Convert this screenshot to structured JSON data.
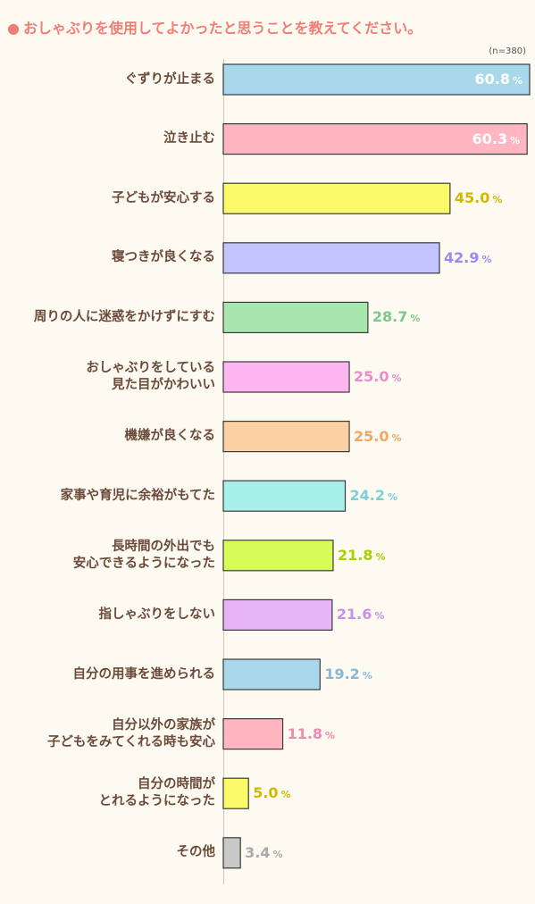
{
  "title": "おしゃぶりを使用してよかったと思うことを教えてください。",
  "title_bullet": "●",
  "n_label": "(n=380)",
  "chart_data": {
    "type": "bar",
    "orientation": "horizontal",
    "title": "おしゃぶりを使用してよかったと思うことを教えてください。",
    "annotation": "(n=380)",
    "unit": "%",
    "xlim": [
      0,
      60.8
    ],
    "grid": false,
    "categories": [
      "ぐずりが止まる",
      "泣き止む",
      "子どもが安心する",
      "寝つきが良くなる",
      "周りの人に迷惑をかけずにすむ",
      "おしゃぶりをしている\n見た目がかわいい",
      "機嫌が良くなる",
      "家事や育児に余裕がもてた",
      "長時間の外出でも\n安心できるようになった",
      "指しゃぶりをしない",
      "自分の用事を進められる",
      "自分以外の家族が\n子どもをみてくれる時も安心",
      "自分の時間が\nとれるようになった",
      "その他"
    ],
    "values": [
      60.8,
      60.3,
      45.0,
      42.9,
      28.7,
      25.0,
      25.0,
      24.2,
      21.8,
      21.6,
      19.2,
      11.8,
      5.0,
      3.4
    ],
    "value_labels": [
      "60.8",
      "60.3",
      "45.0",
      "42.9",
      "28.7",
      "25.0",
      "25.0",
      "24.2",
      "21.8",
      "21.6",
      "19.2",
      "11.8",
      "5.0",
      "3.4"
    ],
    "percent_sign": "%",
    "bar_colors": [
      "#a8d8ea",
      "#ffb6c1",
      "#fbfb6a",
      "#c3c3ff",
      "#a8e6b0",
      "#fdb6f0",
      "#fcd0a4",
      "#a8f0ea",
      "#d8fc5a",
      "#e8b4f8",
      "#a8d8ea",
      "#ffb6c1",
      "#fbfb6a",
      "#c8c8c8"
    ],
    "label_colors": [
      "#ffffff",
      "#ffffff",
      "#d4b800",
      "#9a8af0",
      "#7cc88a",
      "#f08ac8",
      "#f0a860",
      "#7cd0d8",
      "#a8d000",
      "#c890e8",
      "#88b8d8",
      "#f08ab0",
      "#d4b800",
      "#aaaaaa"
    ]
  }
}
